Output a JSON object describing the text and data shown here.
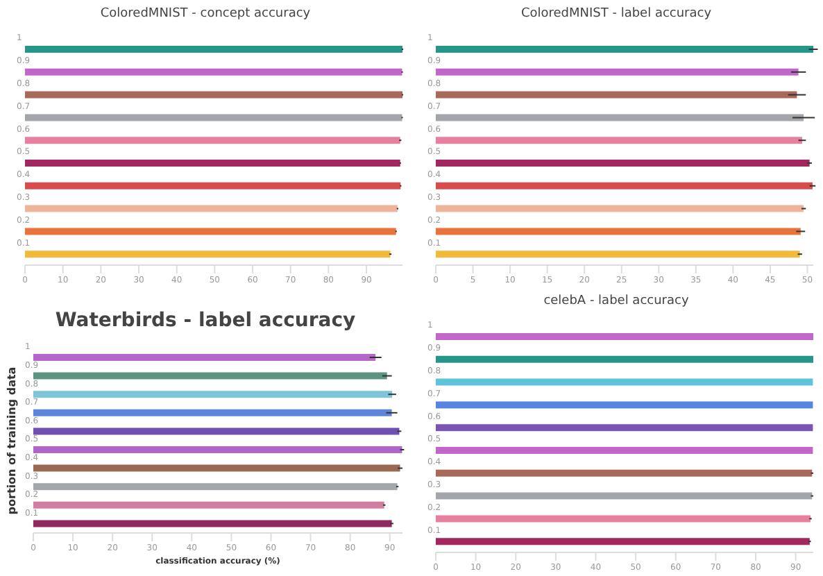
{
  "chart_data": [
    {
      "type": "bar",
      "orientation": "horizontal",
      "title": "ColoredMNIST - concept accuracy",
      "categories": [
        "1",
        "0.9",
        "0.8",
        "0.7",
        "0.6",
        "0.5",
        "0.4",
        "0.3",
        "0.2",
        "0.1"
      ],
      "values": [
        99.5,
        99.4,
        99.5,
        99.4,
        98.9,
        98.9,
        99.0,
        98.2,
        97.8,
        96.3
      ],
      "errors": [
        0.2,
        0.2,
        0.2,
        0.2,
        0.3,
        0.2,
        0.2,
        0.2,
        0.2,
        0.3
      ],
      "colors": [
        "#27968a",
        "#c266c9",
        "#a8695a",
        "#a2a6ab",
        "#e87f9f",
        "#a3275f",
        "#d94c4c",
        "#eeb39a",
        "#e8733d",
        "#f2b93b"
      ],
      "xlim": [
        0,
        99.5
      ],
      "xticks": [
        0,
        10,
        20,
        30,
        40,
        50,
        60,
        70,
        80,
        90
      ]
    },
    {
      "type": "bar",
      "orientation": "horizontal",
      "title": "ColoredMNIST - label accuracy",
      "categories": [
        "1",
        "0.9",
        "0.8",
        "0.7",
        "0.6",
        "0.5",
        "0.4",
        "0.3",
        "0.2",
        "0.1"
      ],
      "values": [
        50.8,
        48.8,
        48.6,
        49.5,
        49.3,
        50.3,
        50.7,
        49.5,
        49.1,
        49.0
      ],
      "errors": [
        0.6,
        1.0,
        1.2,
        1.5,
        0.5,
        0.3,
        0.4,
        0.3,
        0.6,
        0.3
      ],
      "colors": [
        "#27968a",
        "#c266c9",
        "#a8695a",
        "#a2a6ab",
        "#e87f9f",
        "#a3275f",
        "#d94c4c",
        "#eeb39a",
        "#e8733d",
        "#f2b93b"
      ],
      "xlim": [
        0,
        50.8
      ],
      "xticks": [
        0,
        5,
        10,
        15,
        20,
        25,
        30,
        35,
        40,
        45,
        50
      ]
    },
    {
      "type": "bar",
      "orientation": "horizontal",
      "title": "Waterbirds - label accuracy",
      "xlabel": "classification accuracy (%)",
      "ylabel": "portion of training data",
      "categories": [
        "1",
        "0.9",
        "0.8",
        "0.7",
        "0.6",
        "0.5",
        "0.4",
        "0.3",
        "0.2",
        "0.1"
      ],
      "values": [
        86.4,
        89.3,
        90.6,
        90.5,
        92.4,
        93.1,
        92.6,
        91.9,
        88.6,
        90.5
      ],
      "errors": [
        1.5,
        1.2,
        1.0,
        1.4,
        0.5,
        0.5,
        0.6,
        0.3,
        0.3,
        0.4
      ],
      "colors": [
        "#b567c9",
        "#5b9582",
        "#7ec5d9",
        "#5b86d9",
        "#7050b0",
        "#b066c9",
        "#9a6a55",
        "#a3a7ab",
        "#d27ea0",
        "#8e2a60"
      ],
      "xlim": [
        0,
        93.2
      ],
      "xticks": [
        0,
        10,
        20,
        30,
        40,
        50,
        60,
        70,
        80,
        90
      ]
    },
    {
      "type": "bar",
      "orientation": "horizontal",
      "title": "celebA - label accuracy",
      "categories": [
        "1",
        "0.9",
        "0.8",
        "0.7",
        "0.6",
        "0.5",
        "0.4",
        "0.3",
        "0.2",
        "0.1"
      ],
      "values": [
        94.4,
        94.4,
        94.3,
        94.3,
        94.3,
        94.3,
        94.1,
        94.1,
        93.7,
        93.5
      ],
      "errors": [
        null,
        null,
        null,
        null,
        null,
        null,
        0.3,
        0.3,
        0.3,
        0.3
      ],
      "colors": [
        "#c266c9",
        "#27968a",
        "#5ec4da",
        "#5585e0",
        "#7b55b5",
        "#c266c9",
        "#a8695a",
        "#a2a6ab",
        "#e87f9f",
        "#a3275f"
      ],
      "xlim": [
        0,
        94.4
      ],
      "xticks": [
        0,
        10,
        20,
        30,
        40,
        50,
        60,
        70,
        80,
        90
      ]
    }
  ]
}
